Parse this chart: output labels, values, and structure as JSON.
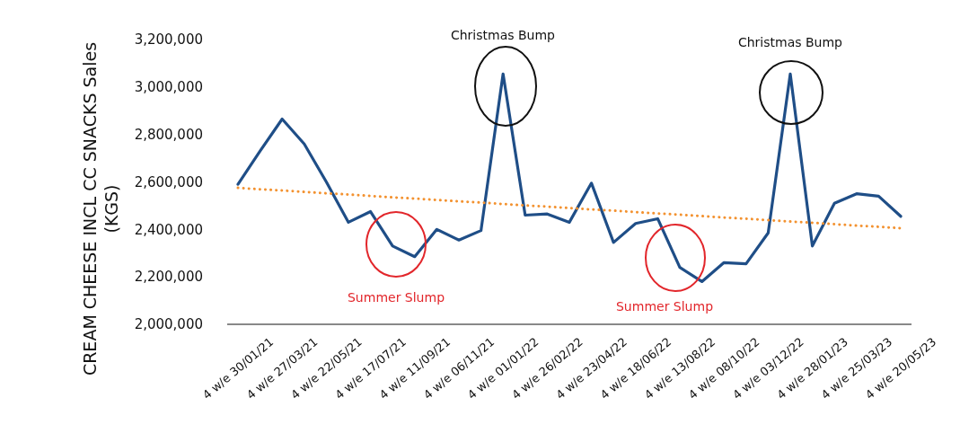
{
  "chart_data": {
    "type": "line",
    "ylabel": "CREAM CHEESE INCL CC SNACKS Sales\n(KGS)",
    "categories": [
      "4 w/e 30/01/21",
      null,
      "4 w/e 27/03/21",
      null,
      "4 w/e 22/05/21",
      null,
      "4 w/e 17/07/21",
      null,
      "4 w/e 11/09/21",
      null,
      "4 w/e 06/11/21",
      null,
      "4 w/e 01/01/22",
      null,
      "4 w/e 26/02/22",
      null,
      "4 w/e 23/04/22",
      null,
      "4 w/e 18/06/22",
      null,
      "4 w/e 13/08/22",
      null,
      "4 w/e 08/10/22",
      null,
      "4 w/e 03/12/22",
      null,
      "4 w/e 28/01/23",
      null,
      "4 w/e 25/03/23",
      null,
      "4 w/e 20/05/23"
    ],
    "series": [
      {
        "color": "#1f4e87",
        "line_style": "solid",
        "values": [
          2590000,
          2730000,
          2865000,
          2760000,
          2600000,
          2430000,
          2475000,
          2330000,
          2285000,
          2400000,
          2355000,
          2395000,
          3055000,
          2460000,
          2465000,
          2430000,
          2595000,
          2345000,
          2425000,
          2445000,
          2240000,
          2180000,
          2260000,
          2255000,
          2385000,
          3055000,
          2330000,
          2510000,
          2550000,
          2540000,
          2455000
        ]
      },
      {
        "color": "#f39230",
        "line_style": "dotted",
        "values": [
          2575000,
          2569000,
          2564000,
          2558000,
          2552000,
          2547000,
          2541000,
          2535000,
          2530000,
          2524000,
          2518000,
          2513000,
          2507000,
          2501000,
          2496000,
          2490000,
          2484000,
          2479000,
          2473000,
          2467000,
          2462000,
          2456000,
          2450000,
          2445000,
          2439000,
          2433000,
          2428000,
          2422000,
          2416000,
          2411000,
          2405000
        ]
      }
    ],
    "ylim": [
      2000000,
      3200000
    ],
    "yticks": [
      {
        "value": 2000000,
        "label": "2,000,000"
      },
      {
        "value": 2200000,
        "label": "2,200,000"
      },
      {
        "value": 2400000,
        "label": "2,400,000"
      },
      {
        "value": 2600000,
        "label": "2,600,000"
      },
      {
        "value": 2800000,
        "label": "2,800,000"
      },
      {
        "value": 3000000,
        "label": "3,000,000"
      },
      {
        "value": 3200000,
        "label": "3,200,000"
      }
    ],
    "annotations": [
      "Christmas Bump",
      "Christmas Bump",
      "Summer Slump",
      "Summer Slump"
    ],
    "grid": false,
    "marker": "none"
  }
}
